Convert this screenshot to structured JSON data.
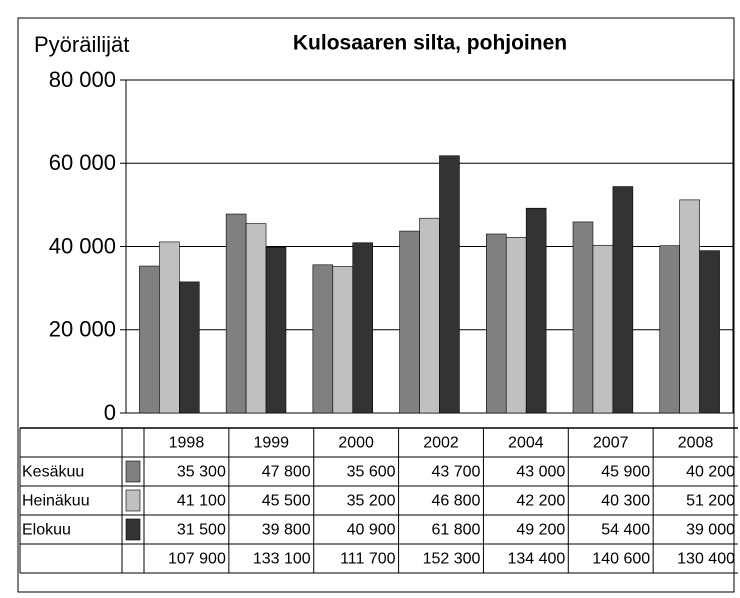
{
  "chart_data": {
    "type": "bar",
    "title": "Kulosaaren silta, pohjoinen",
    "ylabel": "Pyöräilijät",
    "categories": [
      "1998",
      "1999",
      "2000",
      "2002",
      "2004",
      "2007",
      "2008"
    ],
    "series": [
      {
        "name": "Kesäkuu",
        "color": "#808080",
        "values": [
          35300,
          47800,
          35600,
          43700,
          43000,
          45900,
          40200
        ],
        "value_labels": [
          "35 300",
          "47 800",
          "35 600",
          "43 700",
          "43 000",
          "45 900",
          "40 200"
        ]
      },
      {
        "name": "Heinäkuu",
        "color": "#c0c0c0",
        "values": [
          41100,
          45500,
          35200,
          46800,
          42200,
          40300,
          51200
        ],
        "value_labels": [
          "41 100",
          "45 500",
          "35 200",
          "46 800",
          "42 200",
          "40 300",
          "51 200"
        ]
      },
      {
        "name": "Elokuu",
        "color": "#333333",
        "values": [
          31500,
          39800,
          40900,
          61800,
          49200,
          54400,
          39000
        ],
        "value_labels": [
          "31 500",
          "39 800",
          "40 900",
          "61 800",
          "49 200",
          "54 400",
          "39 000"
        ]
      }
    ],
    "totals": {
      "values": [
        107900,
        133100,
        111700,
        152300,
        134400,
        140600,
        130400
      ],
      "value_labels": [
        "107 900",
        "133 100",
        "111 700",
        "152 300",
        "134 400",
        "140 600",
        "130 400"
      ]
    },
    "ylim": [
      0,
      80000
    ],
    "yticks": [
      0,
      {
        "value": 20000,
        "label": "20 000"
      },
      {
        "value": 40000,
        "label": "40 000"
      },
      {
        "value": 60000,
        "label": "60 000"
      },
      {
        "value": 80000,
        "label": "80 000"
      }
    ],
    "grid": true
  }
}
